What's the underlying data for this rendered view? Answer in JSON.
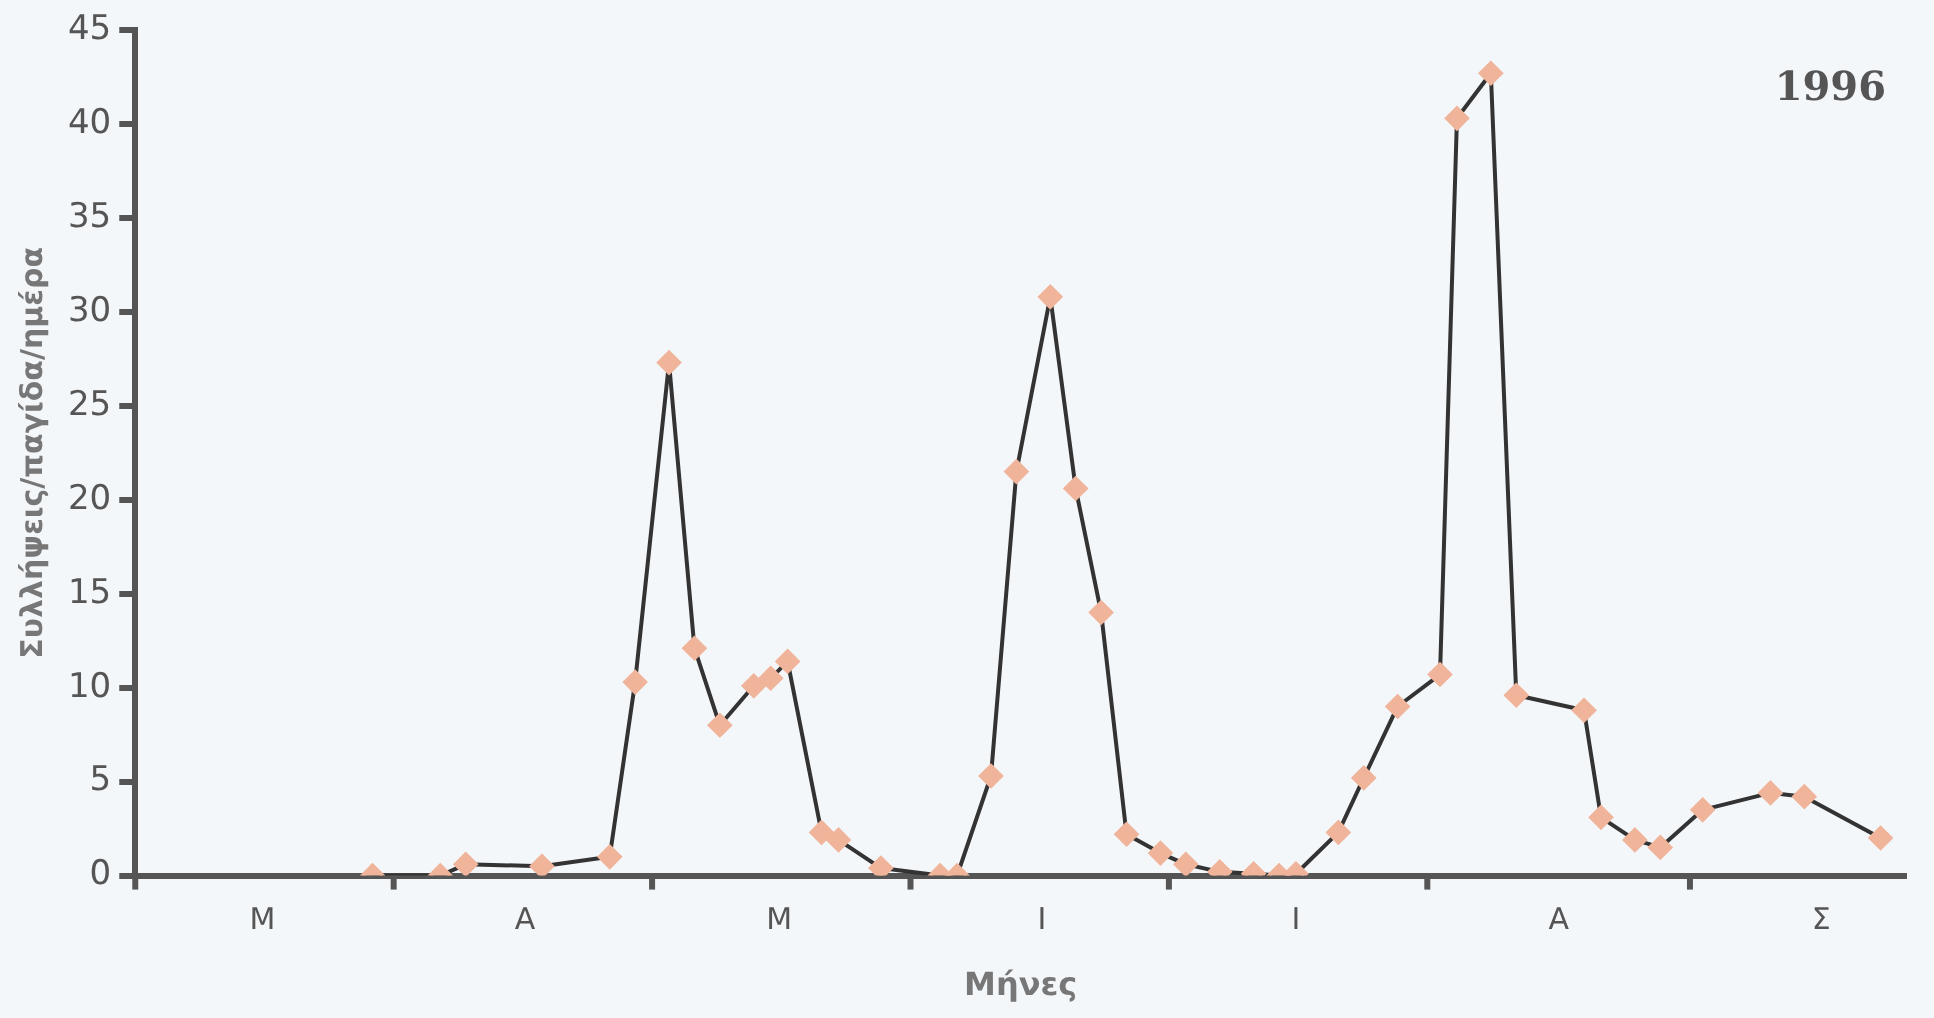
{
  "chart_data": {
    "type": "line",
    "xlabel": "Μήνες",
    "ylabel": "Συλλήψεις/παγίδα/ημέρα",
    "annotations": [
      "1996"
    ],
    "categories": [
      null,
      null,
      null,
      null,
      null,
      null,
      null,
      null,
      null,
      null,
      null,
      null,
      null,
      null,
      null,
      "Μ",
      null,
      null,
      null,
      null,
      null,
      null,
      null,
      null,
      null,
      null,
      null,
      null,
      null,
      null,
      null,
      null,
      null,
      null,
      null,
      null,
      null,
      null,
      null,
      null,
      null,
      null,
      null,
      null,
      null,
      null,
      "Α",
      null,
      null,
      null,
      null,
      null,
      null,
      null,
      null,
      null,
      null,
      null,
      null,
      null,
      null,
      null,
      null,
      null,
      null,
      null,
      null,
      null,
      null,
      null,
      null,
      null,
      null,
      null,
      null,
      null,
      "Μ",
      null,
      null,
      null,
      null,
      null,
      null,
      null,
      null,
      null,
      null,
      null,
      null,
      null,
      null,
      null,
      null,
      null,
      null,
      null,
      null,
      null,
      null,
      null,
      null,
      null,
      null,
      null,
      null,
      null,
      null,
      "Ι",
      null,
      null,
      null,
      null,
      null,
      null,
      null,
      null,
      null,
      null,
      null,
      null,
      null,
      null,
      null,
      null,
      null,
      null,
      null,
      null,
      null,
      null,
      null,
      null,
      null,
      null,
      null,
      null,
      null,
      "Ι",
      null,
      null,
      null,
      null,
      null,
      null,
      null,
      null,
      null,
      null,
      null,
      null,
      null,
      null,
      null,
      null,
      null,
      null,
      null,
      null,
      null,
      null,
      null,
      null,
      null,
      null,
      null,
      null,
      null,
      null,
      "Α",
      null,
      null,
      null,
      null,
      null,
      null,
      null,
      null,
      null,
      null,
      null,
      null,
      null,
      null,
      null,
      null,
      null,
      null,
      null,
      null,
      null,
      null,
      null,
      null,
      null,
      null,
      null,
      null,
      null,
      null,
      "Σ",
      null,
      null,
      null,
      null,
      null,
      null,
      null,
      null,
      null,
      null
    ],
    "ylim": [
      0,
      45
    ],
    "yticks": [
      0,
      5,
      10,
      15,
      20,
      25,
      30,
      35,
      40,
      45
    ],
    "marker": "diamond",
    "line_style": "solid",
    "series": [
      {
        "color": "#333333",
        "values": [
          null,
          null,
          null,
          null,
          null,
          null,
          null,
          null,
          null,
          null,
          null,
          null,
          null,
          null,
          null,
          null,
          null,
          null,
          null,
          null,
          null,
          null,
          null,
          null,
          null,
          null,
          null,
          null,
          0,
          null,
          null,
          null,
          null,
          null,
          null,
          null,
          0,
          null,
          null,
          0.6,
          null,
          null,
          null,
          null,
          null,
          null,
          null,
          null,
          0.5,
          null,
          null,
          null,
          null,
          null,
          null,
          null,
          1.0,
          null,
          null,
          10.3,
          null,
          null,
          null,
          27.3,
          null,
          null,
          12.1,
          null,
          null,
          8.0,
          null,
          null,
          null,
          10.1,
          null,
          10.5,
          null,
          11.4,
          null,
          null,
          null,
          2.3,
          null,
          1.9,
          null,
          null,
          null,
          null,
          0.4,
          null,
          null,
          null,
          null,
          null,
          null,
          0,
          null,
          0,
          null,
          null,
          null,
          5.3,
          null,
          null,
          21.5,
          null,
          null,
          null,
          30.8,
          null,
          null,
          20.6,
          null,
          null,
          14.0,
          null,
          null,
          2.2,
          null,
          null,
          null,
          1.2,
          null,
          null,
          0.6,
          null,
          null,
          null,
          0.2,
          null,
          null,
          null,
          0.1,
          null,
          null,
          0,
          null,
          0.1,
          null,
          null,
          null,
          null,
          2.3,
          null,
          null,
          5.2,
          null,
          null,
          null,
          9.0,
          null,
          null,
          null,
          null,
          10.7,
          null,
          40.3,
          null,
          null,
          null,
          42.7,
          null,
          null,
          9.6,
          null,
          null,
          null,
          null,
          null,
          null,
          null,
          8.8,
          null,
          3.1,
          null,
          null,
          null,
          1.9,
          null,
          null,
          1.5,
          null,
          null,
          null,
          null,
          3.5,
          null,
          null,
          null,
          null,
          null,
          null,
          null,
          4.4,
          null,
          null,
          null,
          4.2,
          null,
          null,
          null,
          null,
          null,
          null,
          null,
          null,
          2.0,
          null,
          null,
          null
        ]
      }
    ]
  }
}
